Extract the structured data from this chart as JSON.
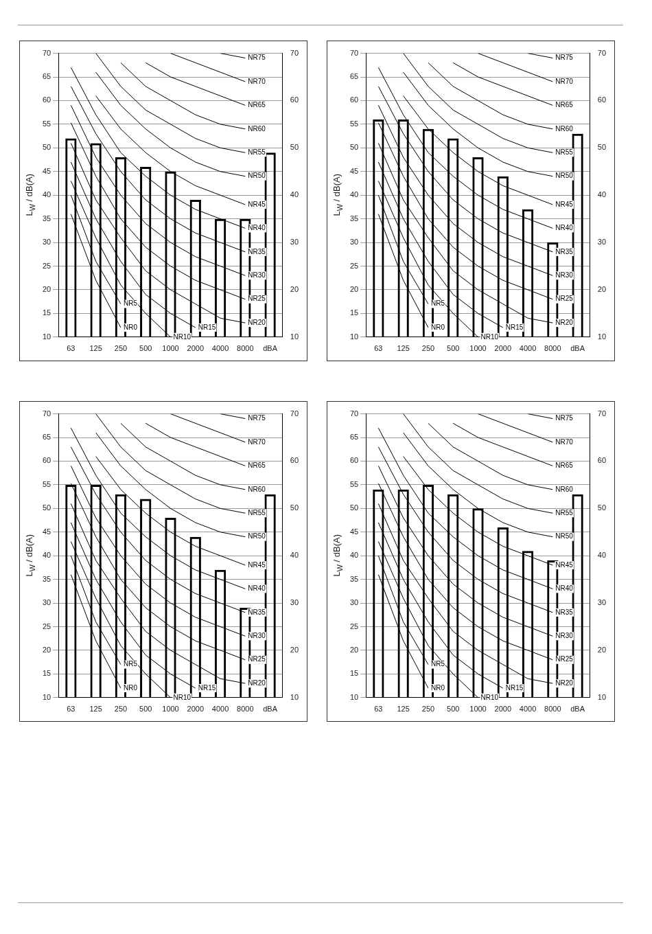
{
  "chart_data": [
    {
      "type": "bar",
      "categories": [
        "63",
        "125",
        "250",
        "500",
        "1000",
        "2000",
        "4000",
        "8000",
        "dBA"
      ],
      "ylabel": "L$_{W}$ / dB(A)",
      "ylim": [
        10,
        70
      ],
      "yticks": [
        10,
        15,
        20,
        25,
        30,
        35,
        40,
        45,
        50,
        55,
        60,
        65,
        70
      ],
      "y2lim": [
        10,
        70
      ],
      "y2ticks": [
        10,
        20,
        30,
        40,
        50,
        60,
        70
      ],
      "grid": "y",
      "marker": "none",
      "line_style": "solid",
      "series": [
        {
          "color": "#000000",
          "values": [
            52,
            51,
            48,
            46,
            45,
            39,
            35,
            35,
            49
          ]
        },
        {
          "type": "line",
          "name": "NR0",
          "color": "#000000",
          "values": [
            36,
            22,
            12,
            null,
            null,
            null,
            null,
            null,
            null
          ]
        },
        {
          "type": "line",
          "name": "NR5",
          "color": "#000000",
          "values": [
            40,
            26,
            17,
            null,
            null,
            null,
            null,
            null,
            null
          ]
        },
        {
          "type": "line",
          "name": "NR10",
          "color": "#000000",
          "values": [
            43,
            31,
            21,
            15,
            10,
            null,
            null,
            null,
            null
          ]
        },
        {
          "type": "line",
          "name": "NR15",
          "color": "#000000",
          "values": [
            47,
            35,
            26,
            19,
            15,
            12,
            null,
            null,
            null
          ]
        },
        {
          "type": "line",
          "name": "NR20",
          "color": "#000000",
          "values": [
            51,
            39,
            31,
            24,
            20,
            17,
            14,
            13,
            null
          ]
        },
        {
          "type": "line",
          "name": "NR25",
          "color": "#000000",
          "values": [
            55.3,
            44,
            35,
            29,
            25,
            22,
            20,
            18,
            null
          ]
        },
        {
          "type": "line",
          "name": "NR30",
          "color": "#000000",
          "values": [
            59,
            48,
            40,
            34,
            30,
            27,
            25,
            23,
            null
          ]
        },
        {
          "type": "line",
          "name": "NR35",
          "color": "#000000",
          "values": [
            63,
            53,
            45,
            39,
            35,
            32,
            30,
            28,
            null
          ]
        },
        {
          "type": "line",
          "name": "NR40",
          "color": "#000000",
          "values": [
            67,
            57,
            49,
            44,
            40,
            37,
            35,
            33,
            null
          ]
        },
        {
          "type": "line",
          "name": "NR45",
          "color": "#000000",
          "values": [
            null,
            61,
            54,
            49,
            45,
            42,
            40,
            38,
            null
          ]
        },
        {
          "type": "line",
          "name": "NR50",
          "color": "#000000",
          "values": [
            null,
            66,
            59,
            54,
            50,
            47,
            45,
            44,
            null
          ]
        },
        {
          "type": "line",
          "name": "NR55",
          "color": "#000000",
          "values": [
            null,
            70,
            63,
            58,
            55,
            52,
            50,
            49,
            null
          ]
        },
        {
          "type": "line",
          "name": "NR60",
          "color": "#000000",
          "values": [
            null,
            null,
            68,
            63,
            60,
            57,
            55,
            54,
            null
          ]
        },
        {
          "type": "line",
          "name": "NR65",
          "color": "#000000",
          "values": [
            null,
            null,
            null,
            68,
            65,
            63,
            61,
            59,
            null
          ]
        },
        {
          "type": "line",
          "name": "NR70",
          "color": "#000000",
          "values": [
            null,
            null,
            null,
            null,
            70,
            68,
            66,
            64,
            null
          ]
        },
        {
          "type": "line",
          "name": "NR75",
          "color": "#000000",
          "values": [
            null,
            null,
            null,
            null,
            null,
            null,
            70,
            69,
            null
          ]
        }
      ]
    },
    {
      "type": "bar",
      "categories": [
        "63",
        "125",
        "250",
        "500",
        "1000",
        "2000",
        "4000",
        "8000",
        "dBA"
      ],
      "ylabel": "L$_{W}$ / dB(A)",
      "ylim": [
        10,
        70
      ],
      "yticks": [
        10,
        15,
        20,
        25,
        30,
        35,
        40,
        45,
        50,
        55,
        60,
        65,
        70
      ],
      "y2lim": [
        10,
        70
      ],
      "y2ticks": [
        10,
        20,
        30,
        40,
        50,
        60,
        70
      ],
      "grid": "y",
      "marker": "none",
      "line_style": "solid",
      "series": [
        {
          "color": "#000000",
          "values": [
            56,
            56,
            54,
            52,
            48,
            44,
            37,
            30,
            53
          ]
        },
        {
          "type": "line",
          "name": "NR0",
          "color": "#000000",
          "values": [
            36,
            22,
            12,
            null,
            null,
            null,
            null,
            null,
            null
          ]
        },
        {
          "type": "line",
          "name": "NR5",
          "color": "#000000",
          "values": [
            40,
            26,
            17,
            null,
            null,
            null,
            null,
            null,
            null
          ]
        },
        {
          "type": "line",
          "name": "NR10",
          "color": "#000000",
          "values": [
            43,
            31,
            21,
            15,
            10,
            null,
            null,
            null,
            null
          ]
        },
        {
          "type": "line",
          "name": "NR15",
          "color": "#000000",
          "values": [
            47,
            35,
            26,
            19,
            15,
            12,
            null,
            null,
            null
          ]
        },
        {
          "type": "line",
          "name": "NR20",
          "color": "#000000",
          "values": [
            51,
            39,
            31,
            24,
            20,
            17,
            14,
            13,
            null
          ]
        },
        {
          "type": "line",
          "name": "NR25",
          "color": "#000000",
          "values": [
            55.3,
            44,
            35,
            29,
            25,
            22,
            20,
            18,
            null
          ]
        },
        {
          "type": "line",
          "name": "NR30",
          "color": "#000000",
          "values": [
            59,
            48,
            40,
            34,
            30,
            27,
            25,
            23,
            null
          ]
        },
        {
          "type": "line",
          "name": "NR35",
          "color": "#000000",
          "values": [
            63,
            53,
            45,
            39,
            35,
            32,
            30,
            28,
            null
          ]
        },
        {
          "type": "line",
          "name": "NR40",
          "color": "#000000",
          "values": [
            67,
            57,
            49,
            44,
            40,
            37,
            35,
            33,
            null
          ]
        },
        {
          "type": "line",
          "name": "NR45",
          "color": "#000000",
          "values": [
            null,
            61,
            54,
            49,
            45,
            42,
            40,
            38,
            null
          ]
        },
        {
          "type": "line",
          "name": "NR50",
          "color": "#000000",
          "values": [
            null,
            66,
            59,
            54,
            50,
            47,
            45,
            44,
            null
          ]
        },
        {
          "type": "line",
          "name": "NR55",
          "color": "#000000",
          "values": [
            null,
            70,
            63,
            58,
            55,
            52,
            50,
            49,
            null
          ]
        },
        {
          "type": "line",
          "name": "NR60",
          "color": "#000000",
          "values": [
            null,
            null,
            68,
            63,
            60,
            57,
            55,
            54,
            null
          ]
        },
        {
          "type": "line",
          "name": "NR65",
          "color": "#000000",
          "values": [
            null,
            null,
            null,
            68,
            65,
            63,
            61,
            59,
            null
          ]
        },
        {
          "type": "line",
          "name": "NR70",
          "color": "#000000",
          "values": [
            null,
            null,
            null,
            null,
            70,
            68,
            66,
            64,
            null
          ]
        },
        {
          "type": "line",
          "name": "NR75",
          "color": "#000000",
          "values": [
            null,
            null,
            null,
            null,
            null,
            null,
            70,
            69,
            null
          ]
        }
      ]
    },
    {
      "type": "bar",
      "categories": [
        "63",
        "125",
        "250",
        "500",
        "1000",
        "2000",
        "4000",
        "8000",
        "dBA"
      ],
      "ylabel": "L$_{W}$ / dB(A)",
      "ylim": [
        10,
        70
      ],
      "yticks": [
        10,
        15,
        20,
        25,
        30,
        35,
        40,
        45,
        50,
        55,
        60,
        65,
        70
      ],
      "y2lim": [
        10,
        70
      ],
      "y2ticks": [
        10,
        20,
        30,
        40,
        50,
        60,
        70
      ],
      "grid": "y",
      "marker": "none",
      "line_style": "solid",
      "series": [
        {
          "color": "#000000",
          "values": [
            55,
            55,
            53,
            52,
            48,
            44,
            37,
            29,
            53
          ]
        },
        {
          "type": "line",
          "name": "NR0",
          "color": "#000000",
          "values": [
            36,
            22,
            12,
            null,
            null,
            null,
            null,
            null,
            null
          ]
        },
        {
          "type": "line",
          "name": "NR5",
          "color": "#000000",
          "values": [
            40,
            26,
            17,
            null,
            null,
            null,
            null,
            null,
            null
          ]
        },
        {
          "type": "line",
          "name": "NR10",
          "color": "#000000",
          "values": [
            43,
            31,
            21,
            15,
            10,
            null,
            null,
            null,
            null
          ]
        },
        {
          "type": "line",
          "name": "NR15",
          "color": "#000000",
          "values": [
            47,
            35,
            26,
            19,
            15,
            12,
            null,
            null,
            null
          ]
        },
        {
          "type": "line",
          "name": "NR20",
          "color": "#000000",
          "values": [
            51,
            39,
            31,
            24,
            20,
            17,
            14,
            13,
            null
          ]
        },
        {
          "type": "line",
          "name": "NR25",
          "color": "#000000",
          "values": [
            55.3,
            44,
            35,
            29,
            25,
            22,
            20,
            18,
            null
          ]
        },
        {
          "type": "line",
          "name": "NR30",
          "color": "#000000",
          "values": [
            59,
            48,
            40,
            34,
            30,
            27,
            25,
            23,
            null
          ]
        },
        {
          "type": "line",
          "name": "NR35",
          "color": "#000000",
          "values": [
            63,
            53,
            45,
            39,
            35,
            32,
            30,
            28,
            null
          ]
        },
        {
          "type": "line",
          "name": "NR40",
          "color": "#000000",
          "values": [
            67,
            57,
            49,
            44,
            40,
            37,
            35,
            33,
            null
          ]
        },
        {
          "type": "line",
          "name": "NR45",
          "color": "#000000",
          "values": [
            null,
            61,
            54,
            49,
            45,
            42,
            40,
            38,
            null
          ]
        },
        {
          "type": "line",
          "name": "NR50",
          "color": "#000000",
          "values": [
            null,
            66,
            59,
            54,
            50,
            47,
            45,
            44,
            null
          ]
        },
        {
          "type": "line",
          "name": "NR55",
          "color": "#000000",
          "values": [
            null,
            70,
            63,
            58,
            55,
            52,
            50,
            49,
            null
          ]
        },
        {
          "type": "line",
          "name": "NR60",
          "color": "#000000",
          "values": [
            null,
            null,
            68,
            63,
            60,
            57,
            55,
            54,
            null
          ]
        },
        {
          "type": "line",
          "name": "NR65",
          "color": "#000000",
          "values": [
            null,
            null,
            null,
            68,
            65,
            63,
            61,
            59,
            null
          ]
        },
        {
          "type": "line",
          "name": "NR70",
          "color": "#000000",
          "values": [
            null,
            null,
            null,
            null,
            70,
            68,
            66,
            64,
            null
          ]
        },
        {
          "type": "line",
          "name": "NR75",
          "color": "#000000",
          "values": [
            null,
            null,
            null,
            null,
            null,
            null,
            70,
            69,
            null
          ]
        }
      ]
    },
    {
      "type": "bar",
      "categories": [
        "63",
        "125",
        "250",
        "500",
        "1000",
        "2000",
        "4000",
        "8000",
        "dBA"
      ],
      "ylabel": "L$_{W}$ / dB(A)",
      "ylim": [
        10,
        70
      ],
      "yticks": [
        10,
        15,
        20,
        25,
        30,
        35,
        40,
        45,
        50,
        55,
        60,
        65,
        70
      ],
      "y2lim": [
        10,
        70
      ],
      "y2ticks": [
        10,
        20,
        30,
        40,
        50,
        60,
        70
      ],
      "grid": "y",
      "marker": "none",
      "line_style": "solid",
      "series": [
        {
          "color": "#000000",
          "values": [
            54,
            54,
            55,
            53,
            50,
            46,
            41,
            39,
            53
          ]
        },
        {
          "type": "line",
          "name": "NR0",
          "color": "#000000",
          "values": [
            36,
            22,
            12,
            null,
            null,
            null,
            null,
            null,
            null
          ]
        },
        {
          "type": "line",
          "name": "NR5",
          "color": "#000000",
          "values": [
            40,
            26,
            17,
            null,
            null,
            null,
            null,
            null,
            null
          ]
        },
        {
          "type": "line",
          "name": "NR10",
          "color": "#000000",
          "values": [
            43,
            31,
            21,
            15,
            10,
            null,
            null,
            null,
            null
          ]
        },
        {
          "type": "line",
          "name": "NR15",
          "color": "#000000",
          "values": [
            47,
            35,
            26,
            19,
            15,
            12,
            null,
            null,
            null
          ]
        },
        {
          "type": "line",
          "name": "NR20",
          "color": "#000000",
          "values": [
            51,
            39,
            31,
            24,
            20,
            17,
            14,
            13,
            null
          ]
        },
        {
          "type": "line",
          "name": "NR25",
          "color": "#000000",
          "values": [
            55.3,
            44,
            35,
            29,
            25,
            22,
            20,
            18,
            null
          ]
        },
        {
          "type": "line",
          "name": "NR30",
          "color": "#000000",
          "values": [
            59,
            48,
            40,
            34,
            30,
            27,
            25,
            23,
            null
          ]
        },
        {
          "type": "line",
          "name": "NR35",
          "color": "#000000",
          "values": [
            63,
            53,
            45,
            39,
            35,
            32,
            30,
            28,
            null
          ]
        },
        {
          "type": "line",
          "name": "NR40",
          "color": "#000000",
          "values": [
            67,
            57,
            49,
            44,
            40,
            37,
            35,
            33,
            null
          ]
        },
        {
          "type": "line",
          "name": "NR45",
          "color": "#000000",
          "values": [
            null,
            61,
            54,
            49,
            45,
            42,
            40,
            38,
            null
          ]
        },
        {
          "type": "line",
          "name": "NR50",
          "color": "#000000",
          "values": [
            null,
            66,
            59,
            54,
            50,
            47,
            45,
            44,
            null
          ]
        },
        {
          "type": "line",
          "name": "NR55",
          "color": "#000000",
          "values": [
            null,
            70,
            63,
            58,
            55,
            52,
            50,
            49,
            null
          ]
        },
        {
          "type": "line",
          "name": "NR60",
          "color": "#000000",
          "values": [
            null,
            null,
            68,
            63,
            60,
            57,
            55,
            54,
            null
          ]
        },
        {
          "type": "line",
          "name": "NR65",
          "color": "#000000",
          "values": [
            null,
            null,
            null,
            68,
            65,
            63,
            61,
            59,
            null
          ]
        },
        {
          "type": "line",
          "name": "NR70",
          "color": "#000000",
          "values": [
            null,
            null,
            null,
            null,
            70,
            68,
            66,
            64,
            null
          ]
        },
        {
          "type": "line",
          "name": "NR75",
          "color": "#000000",
          "values": [
            null,
            null,
            null,
            null,
            null,
            null,
            70,
            69,
            null
          ]
        }
      ]
    }
  ]
}
